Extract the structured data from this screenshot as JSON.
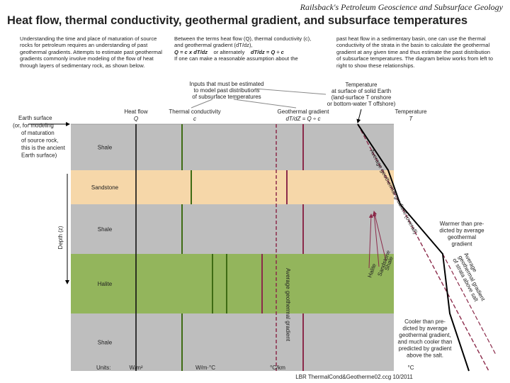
{
  "header": {
    "series": "Railsback's Petroleum Geoscience and Subsurface Geology",
    "title": "Heat flow, thermal conductivity, geothermal gradient, and subsurface temperatures"
  },
  "intro": {
    "col1": "Understanding the time and place of maturation of source rocks for petroleum requires an understanding of past geothermal gradients. Attempts to estimate past geothermal gradients commonly involve modeling of the flow of heat through layers of sedimentary rock, as shown below.",
    "col2": "Between the terms heat flow (Q), thermal conductivity (c), and geothermal gradient (dT/dz),",
    "eq1": "Q = c x dT/dz",
    "or": "or alternately",
    "eq2": "dT/dz = Q ÷ c",
    "col2_end": "If one can make a reasonable assumption about the",
    "col3": "past heat flow in a sedimentary basin, one can use the thermal conductivity of the strata in the basin to calculate the geothermal gradient at any given time and thus estimate the past distribution of subsurface temperatures. The diagram below works from left to right to show these relationships."
  },
  "notes": {
    "inputs": [
      "Inputs that must be estimated",
      "to model past distributions",
      "of subsurface temperatures"
    ],
    "surface_temperature": [
      "Temperature",
      "at surface of solid Earth",
      "(land-surface T onshore",
      "or bottom-water T offshore)"
    ]
  },
  "columns": [
    {
      "label": "Heat flow",
      "symbol": "Q"
    },
    {
      "label": "Thermal conductivity",
      "symbol": "c"
    },
    {
      "label": "Geothermal gradient",
      "symbol": "dT/dZ = Q ÷ c"
    },
    {
      "label": "Temperature",
      "symbol": "T"
    }
  ],
  "earth_surface": [
    "Earth surface",
    "(or, for modeling",
    "of maturation",
    "of source rock,",
    "this is the ancient",
    "Earth surface)"
  ],
  "depth_axis": "Depth (z)",
  "layers": [
    "Shale",
    "Sandstone",
    "Shale",
    "Halite",
    "Shale"
  ],
  "annotations": {
    "average_overall": "Average geothermal gradient (overall)",
    "average_vertical": "Average geothermal gradient",
    "arrow_labels": [
      "Shale",
      "Sandstone",
      "Halite"
    ],
    "above_salt": [
      "Average",
      "geothermal gradient",
      "of strata above salt"
    ],
    "warmer": [
      "Warmer than pre-",
      "dicted by average",
      "geothermal",
      "gradient"
    ],
    "cooler": [
      "Cooler than pre-",
      "dicted by average",
      "geothermal gradient,",
      "and much cooler than",
      "predicted by gradient",
      "above the salt."
    ]
  },
  "units": {
    "label": "Units:",
    "values": [
      "W/m²",
      "W/m·°C",
      "°C/km",
      "°C"
    ]
  },
  "footer": "LBR   ThermalCond&Geotherme02.ccg   10/2011"
}
